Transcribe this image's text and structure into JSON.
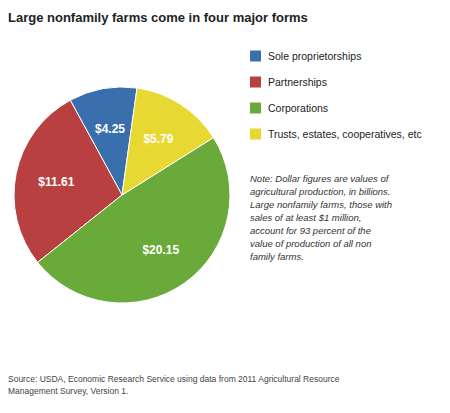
{
  "chart_data": {
    "type": "pie",
    "title": "Large nonfamily farms come in four major forms",
    "categories": [
      "Sole proprietorships",
      "Partnerships",
      "Corporations",
      "Trusts, estates, cooperatives, etc"
    ],
    "values": [
      4.25,
      11.61,
      20.15,
      5.79
    ],
    "value_labels": [
      "$4.25",
      "$11.61",
      "$20.15",
      "$5.79"
    ],
    "colors": [
      "#3a6fad",
      "#b94040",
      "#6aaa3a",
      "#e8d832"
    ],
    "data_labels": true,
    "legend": "right",
    "annotations": [
      "Note: Dollar figures are values of\nagricultural production, in billions.\nLarge nonfamily farms, those with\nsales of at least $1 million,\naccount for 93 percent of the\nvalue of production of all non\nfamily farms.",
      "Source: USDA, Economic Research Service using data from 2011 Agricultural Resource\nManagement Survey, Version 1."
    ]
  }
}
